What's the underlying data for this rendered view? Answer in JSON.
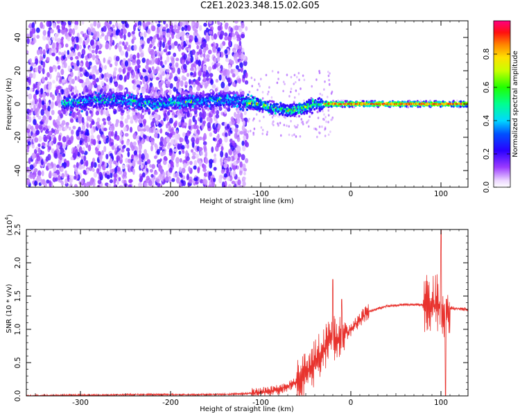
{
  "title": "C2E1.2023.348.15.02.G05",
  "top_panel": {
    "xlabel": "Height of straight line (km)",
    "ylabel": "Frequency (Hz)",
    "x_ticks": [
      "-300",
      "-200",
      "-100",
      "0",
      "100"
    ],
    "y_ticks": [
      "-40",
      "-20",
      "0",
      "20",
      "40"
    ],
    "colorbar_label": "Normalized spectral amplitude",
    "colorbar_ticks": [
      "0.0",
      "0.2",
      "0.4",
      "0.6",
      "0.8"
    ]
  },
  "bottom_panel": {
    "xlabel": "Height of straight line (km)",
    "ylabel": "SNR (10 * v/v)",
    "scale_label": "(x10",
    "scale_exp": "4",
    "scale_close": ")",
    "x_ticks": [
      "-300",
      "-200",
      "-100",
      "0",
      "100"
    ],
    "y_ticks": [
      "0.0",
      "0.5",
      "1.0",
      "1.5",
      "2.0",
      "2.5"
    ]
  },
  "chart_data": [
    {
      "type": "heatmap",
      "title": "C2E1.2023.348.15.02.G05",
      "xlabel": "Height of straight line (km)",
      "ylabel": "Frequency (Hz)",
      "xlim": [
        -360,
        130
      ],
      "ylim": [
        -50,
        50
      ],
      "colorbar": {
        "label": "Normalized spectral amplitude",
        "range": [
          0.0,
          1.0
        ]
      },
      "description_points": {
        "signal_band_center_hz": [
          [
            -310,
            1
          ],
          [
            -280,
            2
          ],
          [
            -250,
            2
          ],
          [
            -220,
            0
          ],
          [
            -190,
            1
          ],
          [
            -160,
            2
          ],
          [
            -130,
            2
          ],
          [
            -110,
            1
          ],
          [
            -90,
            -2
          ],
          [
            -80,
            -3
          ],
          [
            -70,
            -4
          ],
          [
            -60,
            -3
          ],
          [
            -50,
            -2
          ],
          [
            -40,
            0
          ],
          [
            -20,
            0
          ],
          [
            0,
            0
          ],
          [
            50,
            0
          ],
          [
            100,
            0
          ],
          [
            130,
            0
          ]
        ],
        "noise_region_km": [
          -360,
          -115
        ]
      }
    },
    {
      "type": "line",
      "xlabel": "Height of straight line (km)",
      "ylabel": "SNR (10 * v/v)",
      "xlim": [
        -360,
        130
      ],
      "ylim": [
        0,
        2.5
      ],
      "y_scale": "x10^4",
      "series": [
        {
          "color": "#e8332e",
          "x": [
            -360,
            -320,
            -280,
            -240,
            -200,
            -160,
            -120,
            -100,
            -80,
            -60,
            -50,
            -40,
            -30,
            -20,
            -10,
            0,
            10,
            20,
            40,
            60,
            80,
            90,
            100,
            105,
            110,
            130
          ],
          "y": [
            0.0,
            0.01,
            0.01,
            0.02,
            0.02,
            0.02,
            0.03,
            0.05,
            0.1,
            0.2,
            0.3,
            0.5,
            0.7,
            0.85,
            0.9,
            1.0,
            1.15,
            1.27,
            1.35,
            1.37,
            1.37,
            1.38,
            1.38,
            1.2,
            1.32,
            1.3
          ],
          "peaks": [
            [
              -20,
              1.75
            ],
            [
              -10,
              1.45
            ],
            [
              100,
              2.5
            ],
            [
              105,
              0.0
            ]
          ]
        }
      ]
    }
  ]
}
